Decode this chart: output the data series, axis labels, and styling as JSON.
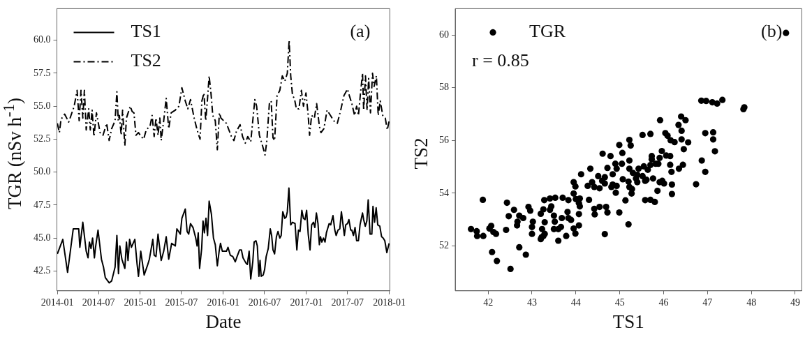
{
  "chart_data": [
    {
      "type": "line",
      "xlabel": "Date",
      "ylabel": "TGR (nSv h$^{-1}$)",
      "annotations": [
        "(a)"
      ],
      "xlim": [
        "2013-12-30",
        "2018-01-03"
      ],
      "xticks": [
        "2014-01",
        "2014-07",
        "2015-01",
        "2015-07",
        "2016-01",
        "2016-07",
        "2017-01",
        "2017-07",
        "2018-01"
      ],
      "ylim": [
        41.0,
        62.4
      ],
      "yticks": [
        {
          "value": 42.5,
          "label": "42.5"
        },
        {
          "value": 45,
          "label": "45.0"
        },
        {
          "value": 47.5,
          "label": "47.5"
        },
        {
          "value": 50,
          "label": "50.0"
        },
        {
          "value": 52.5,
          "label": "52.5"
        },
        {
          "value": 55,
          "label": "55.0"
        },
        {
          "value": 57.5,
          "label": "57.5"
        },
        {
          "value": 60,
          "label": "60.0"
        }
      ],
      "grid": false,
      "legend": "top left",
      "marker": "none",
      "series": [
        {
          "name": "TS1",
          "color": "#000000",
          "line_style": "solid",
          "x": [
            "2014-01-01",
            "2014-01-25",
            "2014-02-15",
            "2014-03-12",
            "2014-04-05",
            "2014-04-10",
            "2014-04-23",
            "2014-05-08",
            "2014-05-16",
            "2014-05-22",
            "2014-05-29",
            "2014-06-05",
            "2014-06-13",
            "2014-06-18",
            "2014-06-29",
            "2014-07-14",
            "2014-07-23",
            "2014-07-31",
            "2014-08-17",
            "2014-08-28",
            "2014-09-12",
            "2014-09-20",
            "2014-09-27",
            "2014-10-03",
            "2014-10-12",
            "2014-10-25",
            "2014-11-01",
            "2014-11-08",
            "2014-11-15",
            "2014-11-23",
            "2014-12-08",
            "2014-12-18",
            "2014-12-24",
            "2015-01-03",
            "2015-01-18",
            "2015-02-03",
            "2015-02-10",
            "2015-02-25",
            "2015-03-03",
            "2015-03-11",
            "2015-03-20",
            "2015-04-03",
            "2015-04-14",
            "2015-04-25",
            "2015-05-06",
            "2015-05-19",
            "2015-06-04",
            "2015-06-11",
            "2015-06-26",
            "2015-07-03",
            "2015-07-18",
            "2015-07-26",
            "2015-08-02",
            "2015-08-10",
            "2015-08-21",
            "2015-09-02",
            "2015-09-08",
            "2015-09-13",
            "2015-09-19",
            "2015-09-28",
            "2015-10-04",
            "2015-10-10",
            "2015-10-17",
            "2015-10-24",
            "2015-10-31",
            "2015-11-10",
            "2015-11-19",
            "2015-11-27",
            "2015-12-06",
            "2015-12-14",
            "2015-12-20",
            "2015-12-28",
            "2016-01-15",
            "2016-01-22",
            "2016-02-01",
            "2016-02-12",
            "2016-02-23",
            "2016-03-02",
            "2016-03-13",
            "2016-03-21",
            "2016-03-28",
            "2016-04-10",
            "2016-04-16",
            "2016-04-24",
            "2016-05-01",
            "2016-05-10",
            "2016-05-16",
            "2016-05-24",
            "2016-05-30",
            "2016-06-06",
            "2016-06-11",
            "2016-06-16",
            "2016-06-25",
            "2016-07-01",
            "2016-07-08",
            "2016-07-17",
            "2016-07-26",
            "2016-08-01",
            "2016-08-07",
            "2016-08-14",
            "2016-08-22",
            "2016-08-29",
            "2016-09-06",
            "2016-09-12",
            "2016-09-19",
            "2016-09-28",
            "2016-10-04",
            "2016-10-09",
            "2016-10-16",
            "2016-10-24",
            "2016-11-01",
            "2016-11-12",
            "2016-11-20",
            "2016-11-27",
            "2016-12-04",
            "2016-12-12",
            "2016-12-19",
            "2016-12-26",
            "2017-01-02",
            "2017-01-09",
            "2017-01-17",
            "2017-01-24",
            "2017-02-01",
            "2017-02-07",
            "2017-02-14",
            "2017-02-21",
            "2017-02-27",
            "2017-03-04",
            "2017-03-10",
            "2017-03-17",
            "2017-03-24",
            "2017-03-30",
            "2017-04-11",
            "2017-04-18",
            "2017-04-28",
            "2017-05-06",
            "2017-05-12",
            "2017-05-20",
            "2017-05-28",
            "2017-06-04",
            "2017-06-17",
            "2017-06-23",
            "2017-07-01",
            "2017-07-07",
            "2017-07-15",
            "2017-07-20",
            "2017-07-27",
            "2017-08-03",
            "2017-08-10",
            "2017-08-18",
            "2017-08-25",
            "2017-09-05",
            "2017-09-10",
            "2017-09-17",
            "2017-09-24",
            "2017-09-30",
            "2017-10-08",
            "2017-10-16",
            "2017-10-21",
            "2017-10-28",
            "2017-11-04",
            "2017-11-11",
            "2017-11-20",
            "2017-11-28",
            "2017-12-05",
            "2017-12-12",
            "2017-12-21",
            "2017-12-31"
          ],
          "values": [
            43.8,
            44.9,
            42.4,
            45.7,
            45.7,
            44.3,
            46.2,
            44.0,
            43.5,
            44.7,
            44.2,
            45.0,
            43.5,
            44.3,
            45.6,
            43.4,
            42.8,
            42.0,
            41.6,
            41.75,
            42.8,
            45.2,
            42.3,
            44.4,
            43.4,
            42.7,
            44.7,
            43.3,
            44.9,
            44.3,
            44.9,
            43.0,
            42.1,
            44.0,
            42.2,
            43.0,
            43.4,
            44.9,
            43.7,
            43.6,
            45.3,
            43.3,
            44.0,
            45.1,
            43.4,
            44.6,
            44.4,
            45.7,
            45.3,
            46.5,
            47.2,
            45.5,
            45.3,
            46.1,
            45.8,
            45.0,
            44.4,
            45.4,
            42.7,
            44.2,
            46.3,
            45.4,
            46.5,
            45.2,
            47.8,
            46.8,
            45.0,
            44.5,
            42.9,
            44.0,
            44.6,
            44.0,
            44.0,
            44.3,
            43.7,
            43.6,
            43.2,
            43.6,
            44.1,
            44.1,
            43.5,
            43.1,
            43.0,
            44.0,
            41.9,
            43.2,
            44.7,
            44.8,
            44.4,
            42.1,
            43.3,
            42.1,
            42.2,
            42.6,
            43.6,
            44.2,
            45.7,
            45.2,
            44.1,
            43.8,
            45.1,
            45.5,
            45.0,
            45.2,
            47.0,
            46.5,
            46.6,
            47.0,
            48.8,
            46.0,
            46.2,
            46.1,
            44.1,
            45.6,
            45.5,
            47.1,
            46.5,
            46.4,
            47.1,
            45.3,
            44.1,
            46.0,
            46.2,
            45.8,
            46.9,
            46.1,
            44.5,
            45.1,
            44.7,
            45.0,
            44.7,
            45.4,
            46.1,
            46.0,
            46.7,
            45.6,
            45.2,
            45.6,
            45.7,
            47.0,
            45.2,
            46.0,
            46.1,
            46.4,
            45.6,
            45.6,
            45.2,
            45.8,
            44.8,
            44.8,
            46.0,
            46.9,
            46.4,
            45.9,
            46.3,
            47.9,
            45.3,
            45.3,
            47.4,
            46.2,
            47.3,
            46.0,
            45.9,
            45.1,
            45.0,
            44.8,
            43.9,
            44.6
          ]
        },
        {
          "name": "TS2",
          "color": "#000000",
          "line_style": "dashed",
          "x": [
            "2014-01-01",
            "2014-01-10",
            "2014-01-17",
            "2014-02-02",
            "2014-02-20",
            "2014-03-02",
            "2014-03-16",
            "2014-03-29",
            "2014-04-07",
            "2014-04-15",
            "2014-04-23",
            "2014-04-30",
            "2014-05-08",
            "2014-05-19",
            "2014-05-26",
            "2014-06-03",
            "2014-06-11",
            "2014-06-22",
            "2014-07-08",
            "2014-07-21",
            "2014-08-06",
            "2014-08-17",
            "2014-08-28",
            "2014-09-12",
            "2014-09-20",
            "2014-09-26",
            "2014-10-01",
            "2014-10-09",
            "2014-10-15",
            "2014-10-25",
            "2014-11-01",
            "2014-11-18",
            "2014-11-26",
            "2014-12-04",
            "2014-12-13",
            "2014-12-24",
            "2015-01-05",
            "2015-01-16",
            "2015-01-27",
            "2015-02-13",
            "2015-02-22",
            "2015-03-03",
            "2015-03-11",
            "2015-03-20",
            "2015-03-28",
            "2015-04-03",
            "2015-04-14",
            "2015-04-25",
            "2015-05-06",
            "2015-05-17",
            "2015-06-04",
            "2015-06-20",
            "2015-07-03",
            "2015-07-18",
            "2015-07-29",
            "2015-08-10",
            "2015-08-26",
            "2015-09-08",
            "2015-09-21",
            "2015-09-29",
            "2015-10-08",
            "2015-10-16",
            "2015-10-24",
            "2015-10-31",
            "2015-11-08",
            "2015-11-16",
            "2015-11-27",
            "2015-12-06",
            "2015-12-15",
            "2015-12-22",
            "2016-01-03",
            "2016-01-15",
            "2016-01-26",
            "2016-02-06",
            "2016-02-17",
            "2016-02-28",
            "2016-03-15",
            "2016-03-26",
            "2016-04-07",
            "2016-04-18",
            "2016-05-01",
            "2016-05-10",
            "2016-05-19",
            "2016-05-27",
            "2016-06-08",
            "2016-06-22",
            "2016-07-03",
            "2016-07-11",
            "2016-07-22",
            "2016-07-30",
            "2016-08-07",
            "2016-08-14",
            "2016-08-25",
            "2016-09-06",
            "2016-09-17",
            "2016-09-28",
            "2016-10-09",
            "2016-10-17",
            "2016-10-24",
            "2016-11-01",
            "2016-11-09",
            "2016-11-18",
            "2016-11-29",
            "2016-12-10",
            "2016-12-19",
            "2016-12-30",
            "2017-01-08",
            "2017-01-15",
            "2017-01-24",
            "2017-02-05",
            "2017-02-15",
            "2017-02-27",
            "2017-03-06",
            "2017-03-19",
            "2017-04-02",
            "2017-04-17",
            "2017-05-01",
            "2017-05-17",
            "2017-06-01",
            "2017-06-15",
            "2017-07-01",
            "2017-07-09",
            "2017-07-20",
            "2017-08-01",
            "2017-08-10",
            "2017-08-18",
            "2017-08-26",
            "2017-09-05",
            "2017-09-10",
            "2017-09-18",
            "2017-09-25",
            "2017-10-02",
            "2017-10-10",
            "2017-10-19",
            "2017-10-26",
            "2017-11-05",
            "2017-11-13",
            "2017-11-22",
            "2017-12-03",
            "2017-12-14",
            "2017-12-23",
            "2017-12-31"
          ],
          "values": [
            53.7,
            53.0,
            54.0,
            54.4,
            53.8,
            54.3,
            55.0,
            56.2,
            53.9,
            56.2,
            54.1,
            56.2,
            53.2,
            54.8,
            53.2,
            54.7,
            52.7,
            54.5,
            53.0,
            52.8,
            53.7,
            52.4,
            53.3,
            53.9,
            56.1,
            53.9,
            54.3,
            52.8,
            54.7,
            52.0,
            54.1,
            55.0,
            54.6,
            54.5,
            52.8,
            53.0,
            52.7,
            52.5,
            53.2,
            53.5,
            54.3,
            52.7,
            54.1,
            52.8,
            54.1,
            52.4,
            53.9,
            55.6,
            53.3,
            54.5,
            54.7,
            55.0,
            56.4,
            55.4,
            54.8,
            55.5,
            54.1,
            53.2,
            52.5,
            55.4,
            56.0,
            53.9,
            55.6,
            57.3,
            56.0,
            54.3,
            53.9,
            51.7,
            54.5,
            54.1,
            53.9,
            53.7,
            53.2,
            52.7,
            52.4,
            53.1,
            53.6,
            52.7,
            52.2,
            52.7,
            52.3,
            53.9,
            55.5,
            55.0,
            52.8,
            52.0,
            51.3,
            52.4,
            55.2,
            55.4,
            52.6,
            52.4,
            55.8,
            56.2,
            57.3,
            56.9,
            57.5,
            60.0,
            57.3,
            55.8,
            55.6,
            54.8,
            54.8,
            56.2,
            55.0,
            56.0,
            54.5,
            52.8,
            54.3,
            54.1,
            55.2,
            53.5,
            53.0,
            53.3,
            54.7,
            54.3,
            53.9,
            53.7,
            54.7,
            55.8,
            56.3,
            55.8,
            55.2,
            54.3,
            55.0,
            54.3,
            55.8,
            57.5,
            54.7,
            57.3,
            54.7,
            57.1,
            54.5,
            57.5,
            56.5,
            57.3,
            54.3,
            55.4,
            54.3,
            54.1,
            53.2,
            53.9
          ]
        }
      ]
    },
    {
      "type": "scatter",
      "xlabel": "TS1",
      "ylabel": "TS2",
      "annotations": [
        "(b)",
        "r = 0.85"
      ],
      "xlim": [
        41.25,
        49.15
      ],
      "xticks": [
        42,
        43,
        44,
        45,
        46,
        47,
        48,
        49
      ],
      "ylim": [
        50.3,
        61.0
      ],
      "yticks": [
        52,
        54,
        56,
        58,
        60
      ],
      "grid": false,
      "legend": "top left",
      "marker": "circle",
      "series": [
        {
          "name": "TGR",
          "color": "#000000",
          "x": [
            48.79,
            46.86,
            46.97,
            47.11,
            47.22,
            47.34,
            47.84,
            47.82,
            45.92,
            46.4,
            46.5,
            46.34,
            45.52,
            45.7,
            46.04,
            46.09,
            46.41,
            46.95,
            47.13,
            45.22,
            46.16,
            46.25,
            46.41,
            46.56,
            47.13,
            44.99,
            45.25,
            46.46,
            47.17,
            44.61,
            44.79,
            45.06,
            45.96,
            45.73,
            46.06,
            46.15,
            45.22,
            45.73,
            45.91,
            46.87,
            44.9,
            45.05,
            45.82,
            46.15,
            46.44,
            44.33,
            44.72,
            44.93,
            45.22,
            45.43,
            45.55,
            45.7,
            45.88,
            45.64,
            46.35,
            44.12,
            44.51,
            44.66,
            44.84,
            45.3,
            45.4,
            45.52,
            46.18,
            46.95,
            44.6,
            45.07,
            45.37,
            45.61,
            45.76,
            45.97,
            43.95,
            44.37,
            44.66,
            44.84,
            45.2,
            45.4,
            45.58,
            45.91,
            46.01,
            46.74,
            46.19,
            43.99,
            44.27,
            44.42,
            44.54,
            44.81,
            44.93,
            45.22,
            45.28,
            43.95,
            44.91,
            45.27,
            45.86,
            46.19,
            43.53,
            43.7,
            43.83,
            44.0,
            44.09,
            44.3,
            45.13,
            45.58,
            45.7,
            45.8,
            41.88,
            42.43,
            43.28,
            43.41,
            44.07,
            44.09,
            42.92,
            43.44,
            43.26,
            44.42,
            44.54,
            44.69,
            42.59,
            42.96,
            43.41,
            44.72,
            44.99,
            44.07,
            44.43,
            42.47,
            42.71,
            43.2,
            43.5,
            43.68,
            43.83,
            42.8,
            43.81,
            42.67,
            43.02,
            43.29,
            43.52,
            43.89,
            45.2,
            42.66,
            43.0,
            43.23,
            43.5,
            43.66,
            44.07,
            42.07,
            41.61,
            42.03,
            42.41,
            43.6,
            43.95,
            41.74,
            42.12,
            42.18,
            43.0,
            43.29,
            43.78,
            43.99,
            44.66,
            41.75,
            41.89,
            43.22,
            43.26,
            43.6,
            43.2,
            42.09,
            42.71,
            42.86,
            42.2,
            42.51
          ],
          "values": [
            60.08,
            57.51,
            57.5,
            57.45,
            57.4,
            57.54,
            57.26,
            57.19,
            56.77,
            56.91,
            56.77,
            56.59,
            56.21,
            56.25,
            56.28,
            56.18,
            56.37,
            56.28,
            56.31,
            56.02,
            56.01,
            55.94,
            56.04,
            55.93,
            56.04,
            55.83,
            55.81,
            55.67,
            55.59,
            55.5,
            55.41,
            55.53,
            55.6,
            55.41,
            55.43,
            55.41,
            55.24,
            55.29,
            55.34,
            55.24,
            55.12,
            55.12,
            55.12,
            55.08,
            55.08,
            54.93,
            54.96,
            54.93,
            54.93,
            54.93,
            55.02,
            55.07,
            55.12,
            54.89,
            54.93,
            54.72,
            54.65,
            54.61,
            54.72,
            54.77,
            54.7,
            54.65,
            54.81,
            54.81,
            54.47,
            54.53,
            54.56,
            54.51,
            54.56,
            54.47,
            54.42,
            54.42,
            54.37,
            54.33,
            54.44,
            54.42,
            54.47,
            54.42,
            54.37,
            54.34,
            54.33,
            54.26,
            54.28,
            54.24,
            54.19,
            54.24,
            54.28,
            54.24,
            54.16,
            53.99,
            54.02,
            53.99,
            54.09,
            53.97,
            53.83,
            53.83,
            53.74,
            53.78,
            53.8,
            53.75,
            53.73,
            53.74,
            53.75,
            53.67,
            53.75,
            53.64,
            53.74,
            53.8,
            53.62,
            53.5,
            53.48,
            53.5,
            53.39,
            53.41,
            53.48,
            53.48,
            53.37,
            53.34,
            53.37,
            53.27,
            53.27,
            53.21,
            53.2,
            53.13,
            53.15,
            53.22,
            53.15,
            53.06,
            53.06,
            53.06,
            53.29,
            52.92,
            52.92,
            52.9,
            52.92,
            52.99,
            52.82,
            52.78,
            52.72,
            52.64,
            52.64,
            52.72,
            52.78,
            52.76,
            52.64,
            52.66,
            52.61,
            52.64,
            52.66,
            52.56,
            52.53,
            52.46,
            52.46,
            52.46,
            52.38,
            52.47,
            52.45,
            52.38,
            52.38,
            52.33,
            52.38,
            52.2,
            52.26,
            51.77,
            51.95,
            51.67,
            51.43,
            51.13
          ]
        }
      ]
    }
  ]
}
